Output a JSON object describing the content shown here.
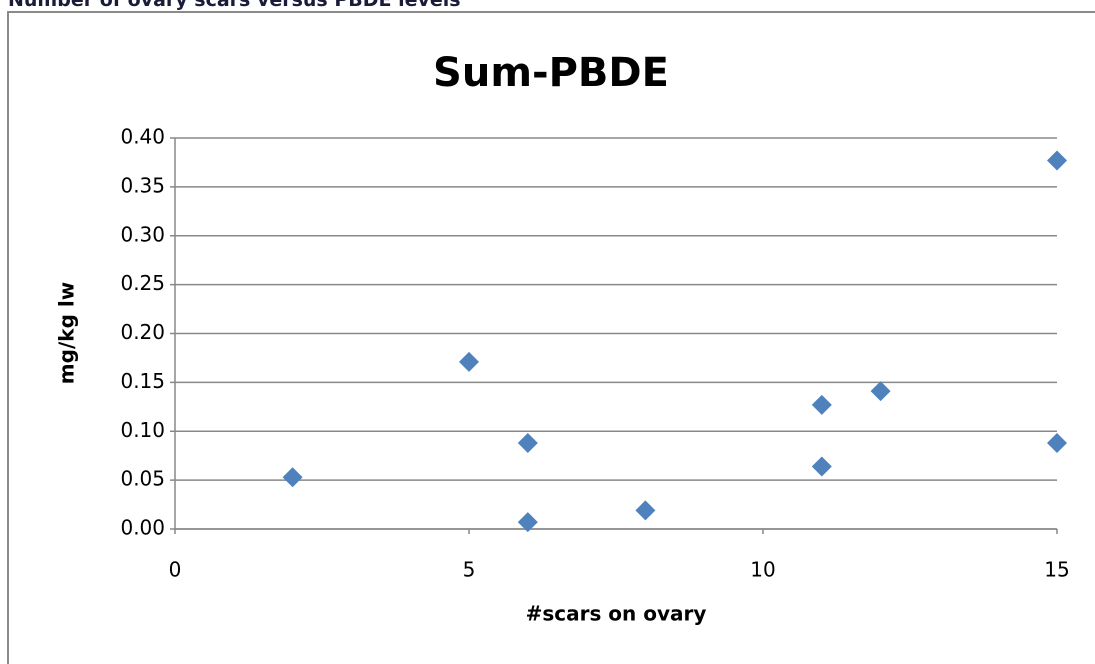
{
  "header": "Number of ovary scars versus PBDE levels",
  "chart_data": {
    "type": "scatter",
    "title": "Sum-PBDE",
    "x_label": "#scars on ovary",
    "y_label": "mg/kg lw",
    "x": [
      2,
      5,
      6,
      6,
      8,
      11,
      11,
      12,
      15,
      15
    ],
    "values": [
      0.053,
      0.171,
      0.088,
      0.007,
      0.019,
      0.127,
      0.064,
      0.141,
      0.377,
      0.088
    ],
    "color": "#4f81bd",
    "xlim": [
      0,
      15
    ],
    "xticks": [
      0,
      5,
      10,
      15
    ],
    "ylim": [
      0,
      0.4
    ],
    "yticks": [
      {
        "value": 0,
        "label": "0.00"
      },
      {
        "value": 0.05,
        "label": "0.05"
      },
      {
        "value": 0.1,
        "label": "0.10"
      },
      {
        "value": 0.15,
        "label": "0.15"
      },
      {
        "value": 0.2,
        "label": "0.20"
      },
      {
        "value": 0.25,
        "label": "0.25"
      },
      {
        "value": 0.3,
        "label": "0.30"
      },
      {
        "value": 0.35,
        "label": "0.35"
      },
      {
        "value": 0.4,
        "label": "0.40"
      }
    ],
    "grid": true
  }
}
